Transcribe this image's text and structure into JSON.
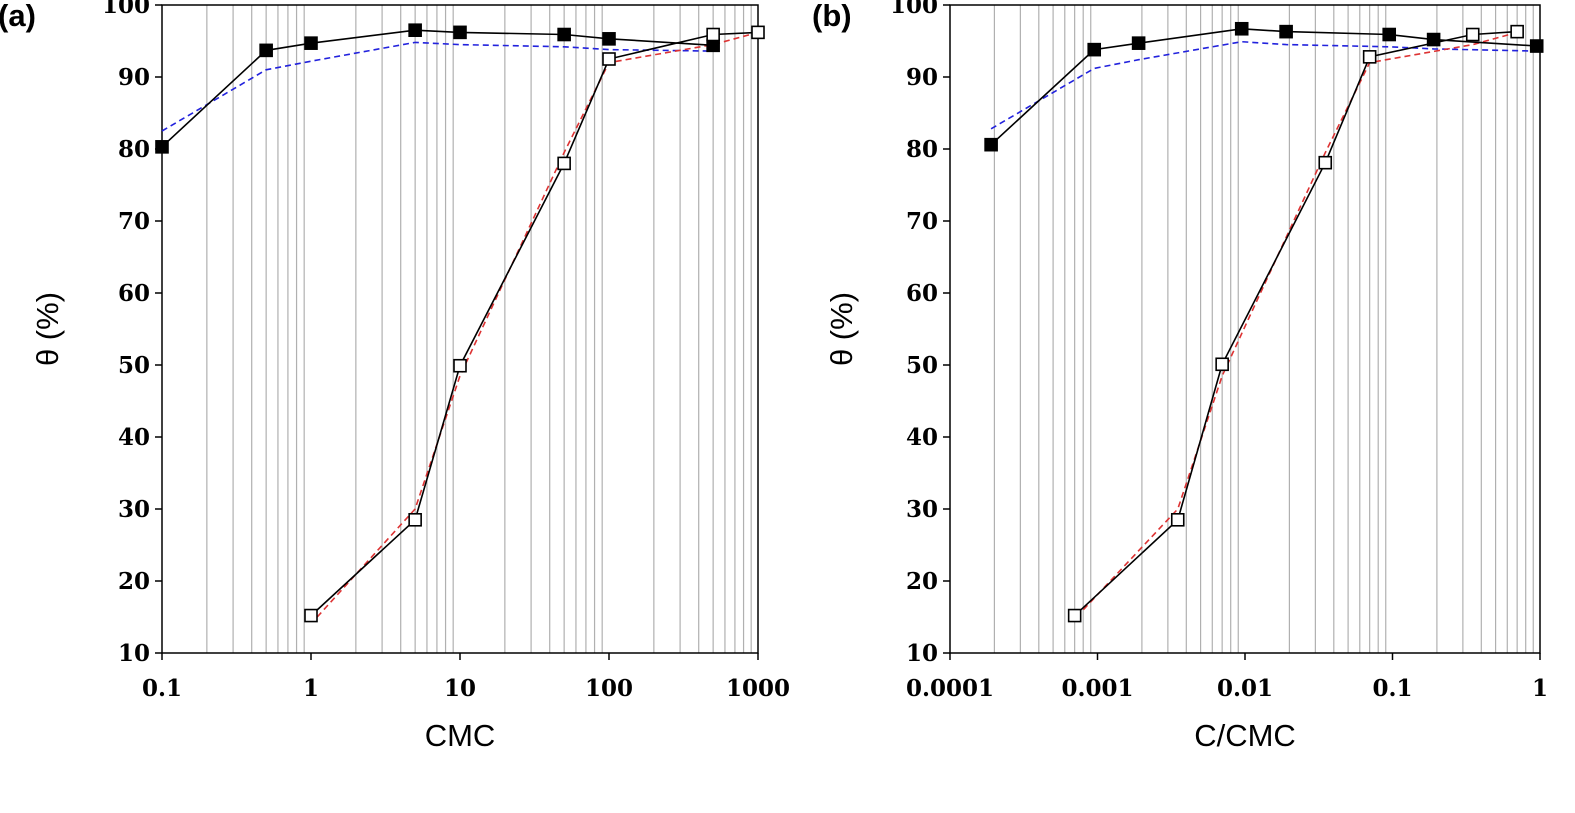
{
  "chart_data": [
    {
      "type": "line",
      "panel_label": "(a)",
      "xlabel": "CMC",
      "ylabel": "θ (%)",
      "x_scale": "log",
      "xlim": [
        0.1,
        1000
      ],
      "ylim": [
        10,
        100
      ],
      "x_ticks": [
        0.1,
        1,
        10,
        100,
        1000
      ],
      "x_tick_labels": [
        "0.1",
        "1",
        "10",
        "100",
        "1000"
      ],
      "y_ticks": [
        10,
        20,
        30,
        40,
        50,
        60,
        70,
        80,
        90,
        100
      ],
      "y_tick_labels": [
        "10",
        "20",
        "30",
        "40",
        "50",
        "60",
        "70",
        "80",
        "90",
        "100"
      ],
      "grid": "vertical minor log lines",
      "series": [
        {
          "marker": "filled-square",
          "line": "solid",
          "color": "#000000",
          "x": [
            0.1,
            0.5,
            1,
            5,
            10,
            50,
            100,
            500
          ],
          "y": [
            80.3,
            93.7,
            94.7,
            96.5,
            96.2,
            95.9,
            95.3,
            94.4
          ]
        },
        {
          "marker": "open-square",
          "line": "solid",
          "color": "#000000",
          "x": [
            1,
            5,
            10,
            50,
            100,
            500,
            1000
          ],
          "y": [
            15.2,
            28.5,
            49.9,
            78.0,
            92.5,
            95.9,
            96.2
          ]
        },
        {
          "marker": "none",
          "line": "dashed",
          "color": "#2222dd",
          "x": [
            0.1,
            0.5,
            1,
            5,
            10,
            50,
            100,
            500
          ],
          "y": [
            82.5,
            91.0,
            92.2,
            94.8,
            94.5,
            94.2,
            93.8,
            93.6
          ]
        },
        {
          "marker": "none",
          "line": "dashed",
          "color": "#dd3333",
          "x": [
            1.1,
            5,
            10,
            50,
            100,
            500,
            1000
          ],
          "y": [
            15.0,
            30.0,
            48.5,
            79.5,
            92.0,
            94.5,
            96.2
          ]
        }
      ]
    },
    {
      "type": "line",
      "panel_label": "(b)",
      "xlabel": "C/CMC",
      "ylabel": "θ (%)",
      "x_scale": "log",
      "xlim": [
        0.0001,
        1
      ],
      "ylim": [
        10,
        100
      ],
      "x_ticks": [
        0.0001,
        0.001,
        0.01,
        0.1,
        1
      ],
      "x_tick_labels": [
        "0.0001",
        "0.001",
        "0.01",
        "0.1",
        "1"
      ],
      "y_ticks": [
        10,
        20,
        30,
        40,
        50,
        60,
        70,
        80,
        90,
        100
      ],
      "y_tick_labels": [
        "10",
        "20",
        "30",
        "40",
        "50",
        "60",
        "70",
        "80",
        "90",
        "100"
      ],
      "grid": "vertical minor log lines",
      "series": [
        {
          "marker": "filled-square",
          "line": "solid",
          "color": "#000000",
          "x": [
            0.00019,
            0.00095,
            0.0019,
            0.0095,
            0.019,
            0.095,
            0.19,
            0.95
          ],
          "y": [
            80.6,
            93.8,
            94.7,
            96.7,
            96.3,
            95.9,
            95.2,
            94.3
          ]
        },
        {
          "marker": "open-square",
          "line": "solid",
          "color": "#000000",
          "x": [
            0.0007,
            0.0035,
            0.007,
            0.035,
            0.07,
            0.35,
            0.7
          ],
          "y": [
            15.2,
            28.5,
            50.1,
            78.1,
            92.8,
            95.9,
            96.3
          ]
        },
        {
          "marker": "none",
          "line": "dashed",
          "color": "#2222dd",
          "x": [
            0.00019,
            0.00095,
            0.0019,
            0.0095,
            0.019,
            0.095,
            0.19,
            0.95
          ],
          "y": [
            82.8,
            91.2,
            92.4,
            94.9,
            94.5,
            94.2,
            93.9,
            93.6
          ]
        },
        {
          "marker": "none",
          "line": "dashed",
          "color": "#dd3333",
          "x": [
            0.00072,
            0.0035,
            0.007,
            0.035,
            0.07,
            0.35,
            0.7
          ],
          "y": [
            15.0,
            30.0,
            48.5,
            79.5,
            92.0,
            94.5,
            96.2
          ]
        }
      ]
    }
  ]
}
